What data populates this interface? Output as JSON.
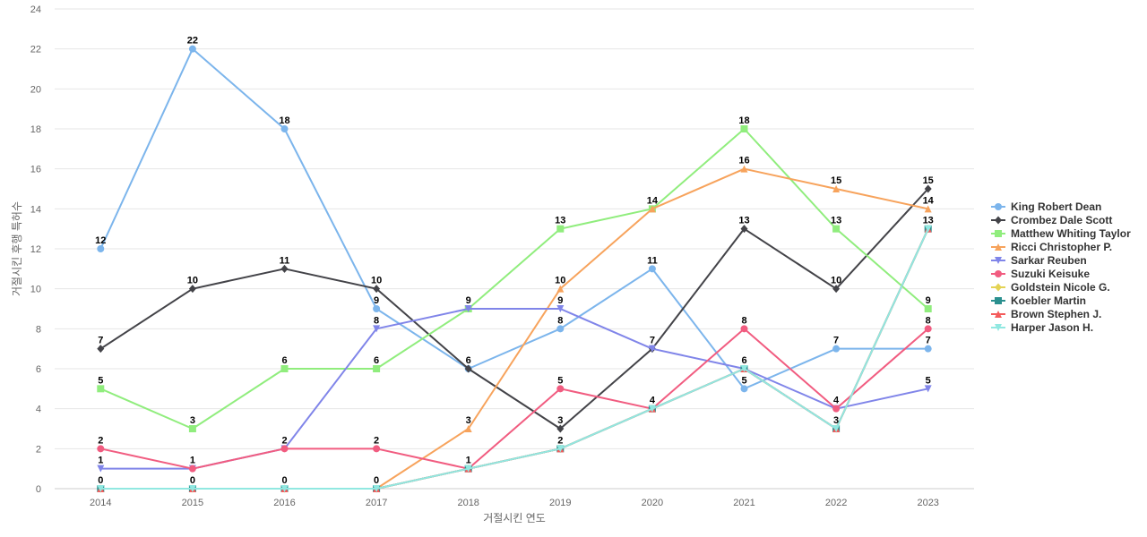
{
  "chart_data": {
    "type": "line",
    "title": "",
    "xlabel": "거절시킨 연도",
    "ylabel": "거절시킨 후행 특허수",
    "ylim": [
      0,
      24
    ],
    "yticks": [
      0,
      2,
      4,
      6,
      8,
      10,
      12,
      14,
      16,
      18,
      20,
      22,
      24
    ],
    "grid": true,
    "legend_position": "right",
    "categories": [
      "2014",
      "2015",
      "2016",
      "2017",
      "2018",
      "2019",
      "2020",
      "2021",
      "2022",
      "2023"
    ],
    "series": [
      {
        "name": "King Robert Dean",
        "color": "#7cb5ec",
        "marker": "circle",
        "values": [
          12,
          22,
          18,
          9,
          6,
          8,
          11,
          5,
          7,
          7
        ]
      },
      {
        "name": "Crombez Dale Scott",
        "color": "#434348",
        "marker": "diamond",
        "values": [
          7,
          10,
          11,
          10,
          6,
          3,
          7,
          13,
          10,
          15
        ]
      },
      {
        "name": "Matthew Whiting Taylor",
        "color": "#90ed7d",
        "marker": "square",
        "values": [
          5,
          3,
          6,
          6,
          9,
          13,
          14,
          18,
          13,
          9
        ]
      },
      {
        "name": "Ricci Christopher P.",
        "color": "#f7a35c",
        "marker": "triangle",
        "values": [
          0,
          0,
          0,
          0,
          3,
          10,
          14,
          16,
          15,
          14
        ]
      },
      {
        "name": "Sarkar Reuben",
        "color": "#8085e9",
        "marker": "triangle-down",
        "values": [
          1,
          1,
          2,
          8,
          9,
          9,
          7,
          6,
          4,
          5
        ]
      },
      {
        "name": "Suzuki Keisuke",
        "color": "#f15c80",
        "marker": "circle",
        "values": [
          2,
          1,
          2,
          2,
          1,
          5,
          4,
          8,
          4,
          8
        ]
      },
      {
        "name": "Goldstein Nicole G.",
        "color": "#e4d354",
        "marker": "diamond",
        "values": [
          0,
          0,
          0,
          0,
          1,
          2,
          4,
          6,
          3,
          13
        ]
      },
      {
        "name": "Koebler Martin",
        "color": "#2b908f",
        "marker": "square",
        "values": [
          0,
          0,
          0,
          0,
          1,
          2,
          4,
          6,
          3,
          13
        ]
      },
      {
        "name": "Brown Stephen J.",
        "color": "#f45b5b",
        "marker": "triangle",
        "values": [
          0,
          0,
          0,
          0,
          1,
          2,
          4,
          6,
          3,
          13
        ]
      },
      {
        "name": "Harper Jason H.",
        "color": "#91e8e1",
        "marker": "triangle-down",
        "values": [
          0,
          0,
          0,
          0,
          1,
          2,
          4,
          6,
          3,
          13
        ]
      }
    ],
    "data_labels": [
      {
        "series": 0,
        "index": 0,
        "text": "12"
      },
      {
        "series": 0,
        "index": 1,
        "text": "22"
      },
      {
        "series": 0,
        "index": 2,
        "text": "18"
      },
      {
        "series": 0,
        "index": 3,
        "text": "9"
      },
      {
        "series": 0,
        "index": 5,
        "text": "8"
      },
      {
        "series": 0,
        "index": 6,
        "text": "11"
      },
      {
        "series": 0,
        "index": 7,
        "text": "5"
      },
      {
        "series": 0,
        "index": 8,
        "text": "7"
      },
      {
        "series": 0,
        "index": 9,
        "text": "7"
      },
      {
        "series": 1,
        "index": 0,
        "text": "7"
      },
      {
        "series": 1,
        "index": 1,
        "text": "10"
      },
      {
        "series": 1,
        "index": 2,
        "text": "11"
      },
      {
        "series": 1,
        "index": 3,
        "text": "10"
      },
      {
        "series": 1,
        "index": 4,
        "text": "6"
      },
      {
        "series": 1,
        "index": 5,
        "text": "3"
      },
      {
        "series": 1,
        "index": 6,
        "text": "7"
      },
      {
        "series": 1,
        "index": 7,
        "text": "13"
      },
      {
        "series": 1,
        "index": 8,
        "text": "10"
      },
      {
        "series": 1,
        "index": 9,
        "text": "15"
      },
      {
        "series": 2,
        "index": 0,
        "text": "5"
      },
      {
        "series": 2,
        "index": 1,
        "text": "3"
      },
      {
        "series": 2,
        "index": 2,
        "text": "6"
      },
      {
        "series": 2,
        "index": 3,
        "text": "6"
      },
      {
        "series": 2,
        "index": 4,
        "text": "9"
      },
      {
        "series": 2,
        "index": 5,
        "text": "13"
      },
      {
        "series": 2,
        "index": 6,
        "text": "14"
      },
      {
        "series": 2,
        "index": 7,
        "text": "18"
      },
      {
        "series": 2,
        "index": 8,
        "text": "13"
      },
      {
        "series": 2,
        "index": 9,
        "text": "9"
      },
      {
        "series": 3,
        "index": 4,
        "text": "3"
      },
      {
        "series": 3,
        "index": 5,
        "text": "10"
      },
      {
        "series": 3,
        "index": 7,
        "text": "16"
      },
      {
        "series": 3,
        "index": 8,
        "text": "15"
      },
      {
        "series": 3,
        "index": 9,
        "text": "14"
      },
      {
        "series": 4,
        "index": 0,
        "text": "1"
      },
      {
        "series": 4,
        "index": 1,
        "text": "1"
      },
      {
        "series": 4,
        "index": 3,
        "text": "8"
      },
      {
        "series": 4,
        "index": 5,
        "text": "9"
      },
      {
        "series": 4,
        "index": 8,
        "text": "4"
      },
      {
        "series": 4,
        "index": 9,
        "text": "5"
      },
      {
        "series": 5,
        "index": 0,
        "text": "2"
      },
      {
        "series": 5,
        "index": 2,
        "text": "2"
      },
      {
        "series": 5,
        "index": 3,
        "text": "2"
      },
      {
        "series": 5,
        "index": 4,
        "text": "1"
      },
      {
        "series": 5,
        "index": 5,
        "text": "5"
      },
      {
        "series": 5,
        "index": 7,
        "text": "8"
      },
      {
        "series": 5,
        "index": 9,
        "text": "8"
      },
      {
        "series": 6,
        "index": 0,
        "text": "0"
      },
      {
        "series": 6,
        "index": 1,
        "text": "0"
      },
      {
        "series": 6,
        "index": 2,
        "text": "0"
      },
      {
        "series": 6,
        "index": 3,
        "text": "0"
      },
      {
        "series": 6,
        "index": 5,
        "text": "2"
      },
      {
        "series": 6,
        "index": 6,
        "text": "4"
      },
      {
        "series": 6,
        "index": 7,
        "text": "6"
      },
      {
        "series": 6,
        "index": 8,
        "text": "3"
      },
      {
        "series": 6,
        "index": 9,
        "text": "13"
      }
    ]
  }
}
